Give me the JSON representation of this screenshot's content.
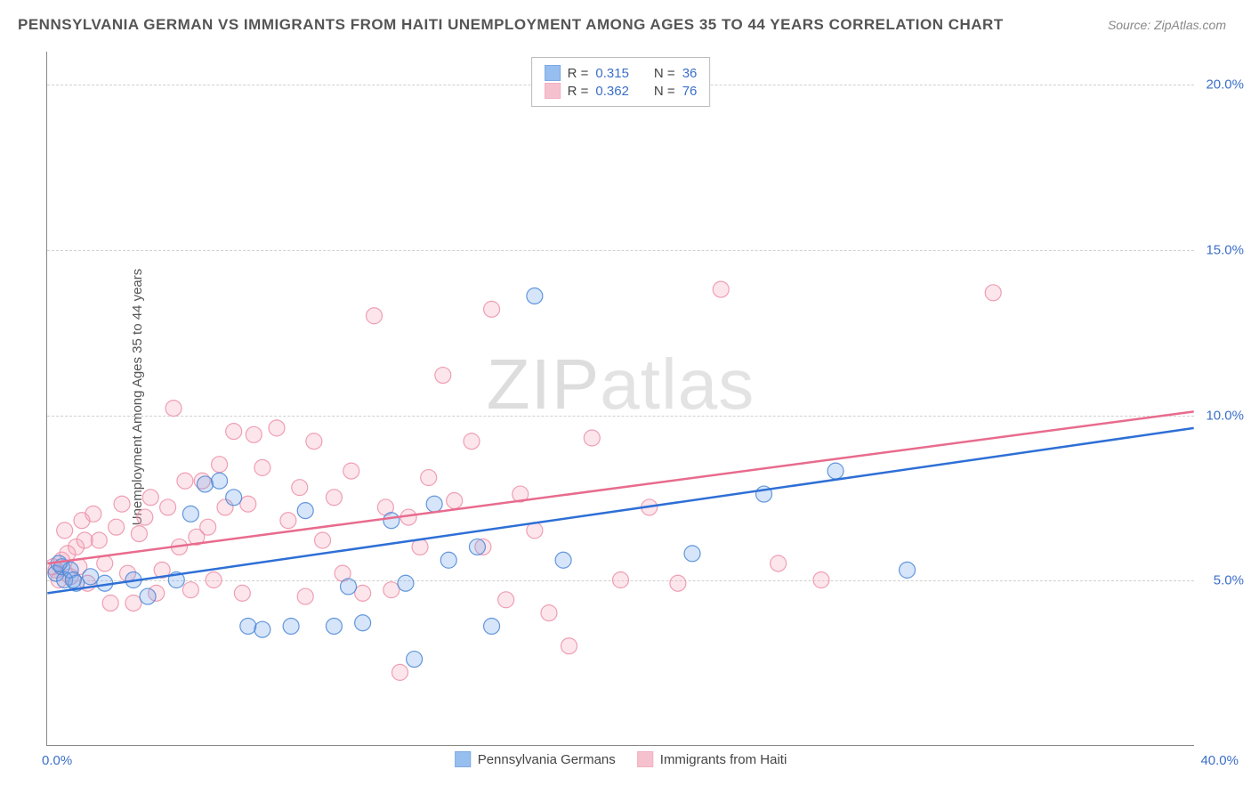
{
  "title": "PENNSYLVANIA GERMAN VS IMMIGRANTS FROM HAITI UNEMPLOYMENT AMONG AGES 35 TO 44 YEARS CORRELATION CHART",
  "source_label": "Source:",
  "source_value": "ZipAtlas.com",
  "ylabel": "Unemployment Among Ages 35 to 44 years",
  "watermark_a": "ZIP",
  "watermark_b": "atlas",
  "chart": {
    "type": "scatter",
    "background_color": "#ffffff",
    "grid_color": "#d0d0d0",
    "axis_color": "#888888",
    "tick_color": "#3b6fc9",
    "tick_fontsize": 15,
    "xlim": [
      0,
      40
    ],
    "ylim": [
      0,
      21
    ],
    "xticks": [
      {
        "v": 0,
        "label": "0.0%"
      },
      {
        "v": 40,
        "label": "40.0%"
      }
    ],
    "yticks": [
      {
        "v": 5,
        "label": "5.0%"
      },
      {
        "v": 10,
        "label": "10.0%"
      },
      {
        "v": 15,
        "label": "15.0%"
      },
      {
        "v": 20,
        "label": "20.0%"
      }
    ],
    "marker_radius": 9,
    "marker_fill_opacity": 0.28,
    "marker_stroke_opacity": 0.85,
    "series": [
      {
        "name": "Pennsylvania Germans",
        "color": "#6aa3e8",
        "stroke": "#4a86d6",
        "trend_color": "#2e6fd6",
        "R": "0.315",
        "N": "36",
        "trend": {
          "x1": 0,
          "y1": 4.6,
          "x2": 40,
          "y2": 9.6
        },
        "points": [
          [
            0.3,
            5.2
          ],
          [
            0.5,
            5.4
          ],
          [
            0.6,
            5.0
          ],
          [
            0.8,
            5.3
          ],
          [
            1.0,
            4.9
          ],
          [
            1.5,
            5.1
          ],
          [
            2.0,
            4.9
          ],
          [
            3.0,
            5.0
          ],
          [
            3.5,
            4.5
          ],
          [
            4.5,
            5.0
          ],
          [
            5.0,
            7.0
          ],
          [
            5.5,
            7.9
          ],
          [
            6.0,
            8.0
          ],
          [
            6.5,
            7.5
          ],
          [
            7.0,
            3.6
          ],
          [
            7.5,
            3.5
          ],
          [
            8.5,
            3.6
          ],
          [
            9.0,
            7.1
          ],
          [
            10.0,
            3.6
          ],
          [
            10.5,
            4.8
          ],
          [
            11.0,
            3.7
          ],
          [
            12.0,
            6.8
          ],
          [
            12.5,
            4.9
          ],
          [
            12.8,
            2.6
          ],
          [
            13.5,
            7.3
          ],
          [
            14.0,
            5.6
          ],
          [
            15.0,
            6.0
          ],
          [
            15.5,
            3.6
          ],
          [
            17.0,
            13.6
          ],
          [
            18.0,
            5.6
          ],
          [
            22.5,
            5.8
          ],
          [
            25.0,
            7.6
          ],
          [
            27.5,
            8.3
          ],
          [
            30.0,
            5.3
          ],
          [
            0.4,
            5.5
          ],
          [
            0.9,
            5.0
          ]
        ]
      },
      {
        "name": "Immigrants from Haiti",
        "color": "#f3a7ba",
        "stroke": "#ec8fa6",
        "trend_color": "#e86b8d",
        "R": "0.362",
        "N": "76",
        "trend": {
          "x1": 0,
          "y1": 5.5,
          "x2": 40,
          "y2": 10.1
        },
        "points": [
          [
            0.2,
            5.4
          ],
          [
            0.3,
            5.3
          ],
          [
            0.5,
            5.6
          ],
          [
            0.6,
            6.5
          ],
          [
            0.8,
            5.1
          ],
          [
            1.0,
            6.0
          ],
          [
            1.2,
            6.8
          ],
          [
            1.4,
            4.9
          ],
          [
            1.6,
            7.0
          ],
          [
            1.8,
            6.2
          ],
          [
            2.0,
            5.5
          ],
          [
            2.2,
            4.3
          ],
          [
            2.4,
            6.6
          ],
          [
            2.6,
            7.3
          ],
          [
            2.8,
            5.2
          ],
          [
            3.0,
            4.3
          ],
          [
            3.2,
            6.4
          ],
          [
            3.4,
            6.9
          ],
          [
            3.6,
            7.5
          ],
          [
            3.8,
            4.6
          ],
          [
            4.0,
            5.3
          ],
          [
            4.2,
            7.2
          ],
          [
            4.4,
            10.2
          ],
          [
            4.6,
            6.0
          ],
          [
            4.8,
            8.0
          ],
          [
            5.0,
            4.7
          ],
          [
            5.2,
            6.3
          ],
          [
            5.4,
            8.0
          ],
          [
            5.6,
            6.6
          ],
          [
            5.8,
            5.0
          ],
          [
            6.0,
            8.5
          ],
          [
            6.2,
            7.2
          ],
          [
            6.5,
            9.5
          ],
          [
            6.8,
            4.6
          ],
          [
            7.0,
            7.3
          ],
          [
            7.2,
            9.4
          ],
          [
            7.5,
            8.4
          ],
          [
            8.0,
            9.6
          ],
          [
            8.4,
            6.8
          ],
          [
            8.8,
            7.8
          ],
          [
            9.0,
            4.5
          ],
          [
            9.3,
            9.2
          ],
          [
            9.6,
            6.2
          ],
          [
            10.0,
            7.5
          ],
          [
            10.3,
            5.2
          ],
          [
            10.6,
            8.3
          ],
          [
            11.0,
            4.6
          ],
          [
            11.4,
            13.0
          ],
          [
            11.8,
            7.2
          ],
          [
            12.0,
            4.7
          ],
          [
            12.3,
            2.2
          ],
          [
            12.6,
            6.9
          ],
          [
            13.0,
            6.0
          ],
          [
            13.3,
            8.1
          ],
          [
            13.8,
            11.2
          ],
          [
            14.2,
            7.4
          ],
          [
            14.8,
            9.2
          ],
          [
            15.2,
            6.0
          ],
          [
            15.5,
            13.2
          ],
          [
            16.0,
            4.4
          ],
          [
            16.5,
            7.6
          ],
          [
            17.0,
            6.5
          ],
          [
            17.5,
            4.0
          ],
          [
            18.2,
            3.0
          ],
          [
            19.0,
            9.3
          ],
          [
            20.0,
            5.0
          ],
          [
            21.0,
            7.2
          ],
          [
            22.0,
            4.9
          ],
          [
            23.5,
            13.8
          ],
          [
            25.5,
            5.5
          ],
          [
            27.0,
            5.0
          ],
          [
            33.0,
            13.7
          ],
          [
            0.4,
            5.0
          ],
          [
            0.7,
            5.8
          ],
          [
            1.1,
            5.4
          ],
          [
            1.3,
            6.2
          ]
        ]
      }
    ],
    "legend_top": {
      "r_label": "R =",
      "n_label": "N ="
    },
    "legend_bottom_labels": [
      "Pennsylvania Germans",
      "Immigrants from Haiti"
    ]
  }
}
